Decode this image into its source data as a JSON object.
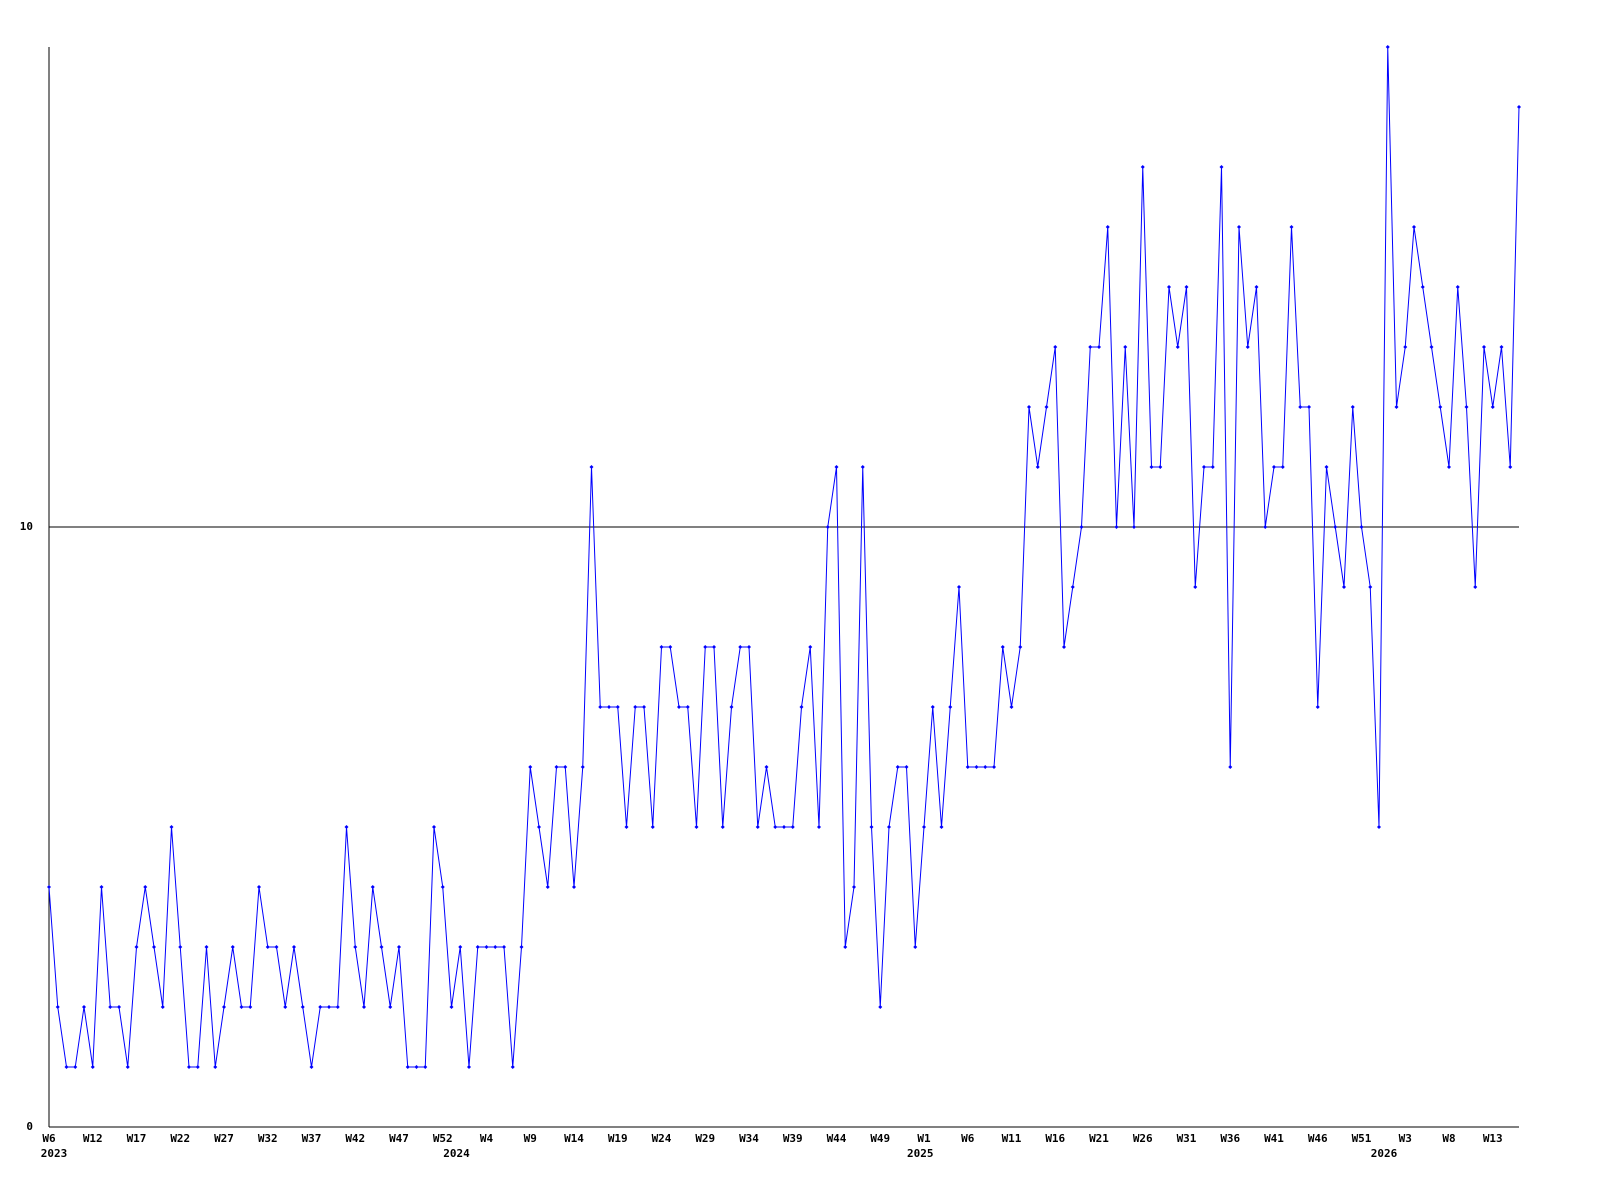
{
  "chart_data": {
    "type": "line",
    "categories": [
      "W6",
      null,
      null,
      null,
      null,
      "W12",
      null,
      null,
      null,
      null,
      "W17",
      null,
      null,
      null,
      null,
      "W22",
      null,
      null,
      null,
      null,
      "W27",
      null,
      null,
      null,
      null,
      "W32",
      null,
      null,
      null,
      null,
      "W37",
      null,
      null,
      null,
      null,
      "W42",
      null,
      null,
      null,
      null,
      "W47",
      null,
      null,
      null,
      null,
      "W52",
      null,
      null,
      null,
      null,
      "W4",
      null,
      null,
      null,
      null,
      "W9",
      null,
      null,
      null,
      null,
      "W14",
      null,
      null,
      null,
      null,
      "W19",
      null,
      null,
      null,
      null,
      "W24",
      null,
      null,
      null,
      null,
      "W29",
      null,
      null,
      null,
      null,
      "W34",
      null,
      null,
      null,
      null,
      "W39",
      null,
      null,
      null,
      null,
      "W44",
      null,
      null,
      null,
      null,
      "W49",
      null,
      null,
      null,
      null,
      "W1",
      null,
      null,
      null,
      null,
      "W6",
      null,
      null,
      null,
      null,
      "W11",
      null,
      null,
      null,
      null,
      "W16",
      null,
      null,
      null,
      null,
      "W21",
      null,
      null,
      null,
      null,
      "W26",
      null,
      null,
      null,
      null,
      "W31",
      null,
      null,
      null,
      null,
      "W36",
      null,
      null,
      null,
      null,
      "W41",
      null,
      null,
      null,
      null,
      "W46",
      null,
      null,
      null,
      null,
      "W51",
      null,
      null,
      null,
      null,
      "W3",
      null,
      null,
      null,
      null,
      "W8",
      null,
      null,
      null,
      null,
      "W13",
      null,
      null,
      null
    ],
    "years": [
      "2023",
      null,
      null,
      null,
      null,
      null,
      null,
      null,
      null,
      null,
      null,
      null,
      null,
      null,
      null,
      null,
      null,
      null,
      null,
      null,
      null,
      null,
      null,
      null,
      null,
      null,
      null,
      null,
      null,
      null,
      null,
      null,
      null,
      null,
      null,
      null,
      null,
      null,
      null,
      null,
      null,
      null,
      null,
      null,
      null,
      null,
      "2024",
      null,
      null,
      null,
      null,
      null,
      null,
      null,
      null,
      null,
      null,
      null,
      null,
      null,
      null,
      null,
      null,
      null,
      null,
      null,
      null,
      null,
      null,
      null,
      null,
      null,
      null,
      null,
      null,
      null,
      null,
      null,
      null,
      null,
      null,
      null,
      null,
      null,
      null,
      null,
      null,
      null,
      null,
      null,
      null,
      null,
      null,
      null,
      null,
      null,
      null,
      null,
      null,
      "2025",
      null,
      null,
      null,
      null,
      null,
      null,
      null,
      null,
      null,
      null,
      null,
      null,
      null,
      null,
      null,
      null,
      null,
      null,
      null,
      null,
      null,
      null,
      null,
      null,
      null,
      null,
      null,
      null,
      null,
      null,
      null,
      null,
      null,
      null,
      null,
      null,
      null,
      null,
      null,
      null,
      null,
      null,
      null,
      null,
      null,
      null,
      null,
      null,
      null,
      null,
      null,
      null,
      "2026",
      null,
      null,
      null,
      null,
      null,
      null,
      null,
      null,
      null,
      null,
      null,
      null,
      null,
      null,
      null,
      null
    ],
    "series": [
      {
        "color": "#0000ff",
        "values": [
          4,
          2,
          1,
          1,
          2,
          1,
          4,
          2,
          2,
          1,
          3,
          4,
          3,
          2,
          5,
          3,
          1,
          1,
          3,
          1,
          2,
          3,
          2,
          2,
          4,
          3,
          3,
          2,
          3,
          2,
          1,
          2,
          2,
          2,
          5,
          3,
          2,
          4,
          3,
          2,
          3,
          1,
          1,
          1,
          5,
          4,
          2,
          3,
          1,
          3,
          3,
          3,
          3,
          1,
          3,
          6,
          5,
          4,
          6,
          6,
          4,
          6,
          11,
          7,
          7,
          7,
          5,
          7,
          7,
          5,
          8,
          8,
          7,
          7,
          5,
          8,
          8,
          5,
          7,
          8,
          8,
          5,
          6,
          5,
          5,
          5,
          7,
          8,
          5,
          10,
          11,
          3,
          4,
          11,
          5,
          2,
          5,
          6,
          6,
          3,
          5,
          7,
          5,
          7,
          9,
          6,
          6,
          6,
          6,
          8,
          7,
          8,
          12,
          11,
          12,
          13,
          8,
          9,
          10,
          13,
          13,
          15,
          10,
          13,
          10,
          16,
          11,
          11,
          14,
          13,
          14,
          9,
          11,
          11,
          16,
          6,
          15,
          13,
          14,
          10,
          11,
          11,
          15,
          12,
          12,
          7,
          11,
          10,
          9,
          12,
          10,
          9,
          5,
          18,
          12,
          13,
          15,
          14,
          13,
          12,
          11,
          14,
          12,
          9,
          13,
          12,
          13,
          11,
          17
        ]
      }
    ],
    "ylim": [
      0,
      18
    ],
    "yticks": [
      0,
      10
    ],
    "grid": true
  }
}
